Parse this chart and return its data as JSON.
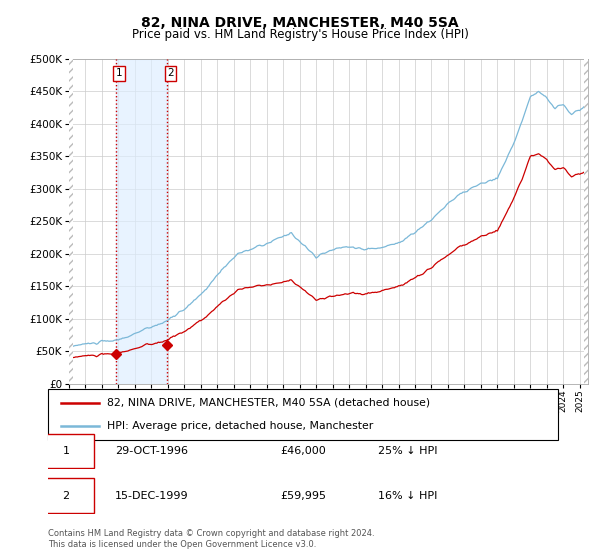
{
  "title": "82, NINA DRIVE, MANCHESTER, M40 5SA",
  "subtitle": "Price paid vs. HM Land Registry's House Price Index (HPI)",
  "legend_line1": "82, NINA DRIVE, MANCHESTER, M40 5SA (detached house)",
  "legend_line2": "HPI: Average price, detached house, Manchester",
  "footer": "Contains HM Land Registry data © Crown copyright and database right 2024.\nThis data is licensed under the Open Government Licence v3.0.",
  "table": [
    {
      "num": "1",
      "date": "29-OCT-1996",
      "price": "£46,000",
      "hpi": "25% ↓ HPI"
    },
    {
      "num": "2",
      "date": "15-DEC-1999",
      "price": "£59,995",
      "hpi": "16% ↓ HPI"
    }
  ],
  "sale1_year": 1996.83,
  "sale1_price": 46000,
  "sale2_year": 1999.96,
  "sale2_price": 59995,
  "hpi_color": "#7bb8d8",
  "price_color": "#cc0000",
  "marker_color": "#cc0000",
  "vline_color": "#cc0000",
  "shade_color": "#ddeeff",
  "ylim_max": 500000,
  "ylim_min": 0,
  "xlim_min": 1994.0,
  "xlim_max": 2025.5
}
